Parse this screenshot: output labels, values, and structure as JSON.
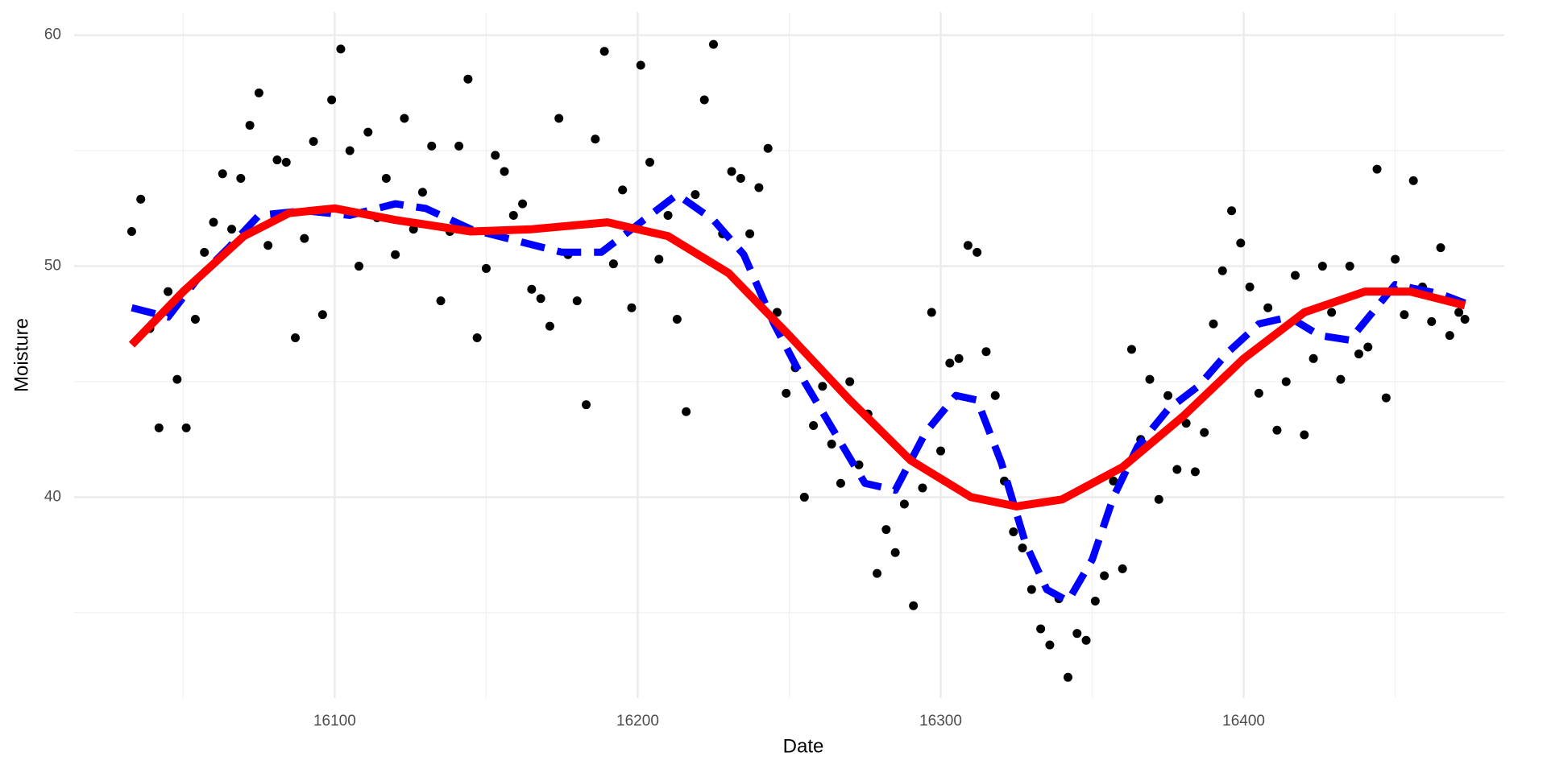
{
  "chart_data": {
    "type": "scatter",
    "x_label": "Date",
    "y_label": "Moisture",
    "xlim": [
      16014,
      16486
    ],
    "ylim": [
      31.3,
      61
    ],
    "xticks": [
      16100,
      16200,
      16300,
      16400
    ],
    "yticks": [
      40,
      50,
      60
    ],
    "x_minor_ticks": [
      16050,
      16150,
      16250,
      16350,
      16450
    ],
    "y_minor_ticks": [
      35,
      45,
      55
    ],
    "grid": true,
    "series": [
      {
        "type": "scatter",
        "color": "#000000",
        "x": [
          16033,
          16036,
          16039,
          16042,
          16045,
          16048,
          16051,
          16054,
          16057,
          16060,
          16063,
          16066,
          16069,
          16072,
          16075,
          16078,
          16081,
          16084,
          16087,
          16090,
          16093,
          16096,
          16099,
          16102,
          16105,
          16108,
          16111,
          16114,
          16117,
          16120,
          16123,
          16126,
          16129,
          16132,
          16135,
          16138,
          16141,
          16144,
          16147,
          16150,
          16153,
          16156,
          16159,
          16162,
          16165,
          16168,
          16171,
          16174,
          16177,
          16180,
          16183,
          16186,
          16189,
          16192,
          16195,
          16198,
          16201,
          16204,
          16207,
          16210,
          16213,
          16216,
          16219,
          16222,
          16225,
          16228,
          16231,
          16234,
          16237,
          16240,
          16243,
          16246,
          16249,
          16252,
          16255,
          16258,
          16261,
          16264,
          16267,
          16270,
          16273,
          16276,
          16279,
          16282,
          16285,
          16288,
          16291,
          16294,
          16297,
          16300,
          16303,
          16306,
          16309,
          16312,
          16315,
          16318,
          16321,
          16324,
          16327,
          16330,
          16333,
          16336,
          16339,
          16342,
          16345,
          16348,
          16351,
          16354,
          16357,
          16360,
          16363,
          16366,
          16369,
          16372,
          16375,
          16378,
          16381,
          16384,
          16387,
          16390,
          16393,
          16396,
          16399,
          16402,
          16405,
          16408,
          16411,
          16414,
          16417,
          16420,
          16423,
          16426,
          16429,
          16432,
          16435,
          16438,
          16441,
          16444,
          16447,
          16450,
          16453,
          16456,
          16459,
          16462,
          16465,
          16468,
          16471,
          16473
        ],
        "values": [
          51.5,
          52.9,
          47.3,
          43.0,
          48.9,
          45.1,
          43.0,
          47.7,
          50.6,
          51.9,
          54.0,
          51.6,
          53.8,
          56.1,
          57.5,
          50.9,
          54.6,
          54.5,
          46.9,
          51.2,
          55.4,
          47.9,
          57.2,
          59.4,
          55.0,
          50.0,
          55.8,
          52.1,
          53.8,
          50.5,
          56.4,
          51.6,
          53.2,
          55.2,
          48.5,
          51.5,
          55.2,
          58.1,
          46.9,
          49.9,
          54.8,
          54.1,
          52.2,
          52.7,
          49.0,
          48.6,
          47.4,
          56.4,
          50.5,
          48.5,
          44.0,
          55.5,
          59.3,
          50.1,
          53.3,
          48.2,
          58.7,
          54.5,
          50.3,
          52.2,
          47.7,
          43.7,
          53.1,
          57.2,
          59.6,
          51.4,
          54.1,
          53.8,
          51.4,
          53.4,
          55.1,
          48.0,
          44.5,
          45.6,
          40.0,
          43.1,
          44.8,
          42.3,
          40.6,
          45.0,
          41.4,
          43.6,
          36.7,
          38.6,
          37.6,
          39.7,
          35.3,
          40.4,
          48.0,
          42.0,
          45.8,
          46.0,
          50.9,
          50.6,
          46.3,
          44.4,
          40.7,
          38.5,
          37.8,
          36.0,
          34.3,
          33.6,
          35.6,
          32.2,
          34.1,
          33.8,
          35.5,
          36.6,
          40.7,
          36.9,
          46.4,
          42.5,
          45.1,
          39.9,
          44.4,
          41.2,
          43.2,
          41.1,
          42.8,
          47.5,
          49.8,
          52.4,
          51.0,
          49.1,
          44.5,
          48.2,
          42.9,
          45.0,
          49.6,
          42.7,
          46.0,
          50.0,
          48.0,
          45.1,
          50.0,
          46.2,
          46.5,
          54.2,
          44.3,
          50.3,
          47.9,
          53.7,
          49.1,
          47.6,
          50.8,
          47.0,
          48.0,
          47.7
        ]
      },
      {
        "type": "line",
        "color": "#0000ff",
        "dashed": true,
        "x": [
          16033,
          16045,
          16055,
          16065,
          16075,
          16090,
          16105,
          16120,
          16130,
          16145,
          16160,
          16175,
          16188,
          16200,
          16213,
          16225,
          16235,
          16245,
          16255,
          16265,
          16275,
          16285,
          16295,
          16305,
          16312,
          16320,
          16328,
          16335,
          16342,
          16350,
          16357,
          16365,
          16375,
          16385,
          16395,
          16405,
          16415,
          16425,
          16435,
          16450,
          16465,
          16473
        ],
        "values": [
          48.2,
          47.8,
          49.5,
          50.8,
          52.2,
          52.4,
          52.2,
          52.7,
          52.5,
          51.6,
          51.1,
          50.6,
          50.6,
          51.8,
          53.1,
          52.0,
          50.5,
          47.5,
          45.0,
          42.8,
          40.6,
          40.3,
          42.8,
          44.4,
          44.2,
          41.5,
          38.0,
          36.0,
          35.5,
          37.3,
          40.0,
          42.2,
          43.8,
          44.8,
          46.3,
          47.5,
          47.8,
          47.0,
          46.8,
          49.2,
          48.8,
          48.4
        ]
      },
      {
        "type": "line",
        "color": "#ff0000",
        "dashed": false,
        "x": [
          16033,
          16050,
          16070,
          16085,
          16100,
          16120,
          16145,
          16165,
          16190,
          16210,
          16230,
          16250,
          16270,
          16290,
          16310,
          16325,
          16340,
          16360,
          16380,
          16400,
          16420,
          16440,
          16455,
          16473
        ],
        "values": [
          46.6,
          48.9,
          51.3,
          52.3,
          52.5,
          52.0,
          51.5,
          51.6,
          51.9,
          51.3,
          49.7,
          47.0,
          44.2,
          41.6,
          40.0,
          39.6,
          39.9,
          41.3,
          43.5,
          46.0,
          48.0,
          48.9,
          48.9,
          48.3
        ]
      }
    ]
  }
}
